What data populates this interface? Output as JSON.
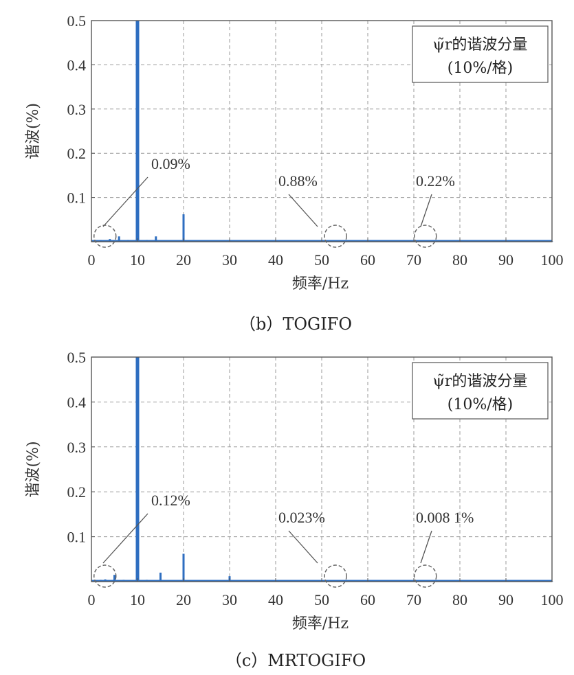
{
  "chart_data": [
    {
      "type": "bar",
      "caption": "（b）TOGIFO",
      "xlabel": "频率/Hz",
      "ylabel": "谐波(%)",
      "xlim": [
        0,
        100
      ],
      "ylim": [
        0,
        0.5
      ],
      "xticks": [
        "0",
        "10",
        "20",
        "30",
        "40",
        "50",
        "60",
        "70",
        "80",
        "90",
        "100"
      ],
      "yticks": [
        "0.1",
        "0.2",
        "0.3",
        "0.4",
        "0.5"
      ],
      "grid": true,
      "legend": {
        "line1": "ψ̃r的谐波分量",
        "line2": "(10%/格)",
        "placement": "top-right"
      },
      "color": "#2e6ec0",
      "x": [
        1,
        2,
        4,
        6,
        8,
        10,
        12,
        14,
        16,
        18,
        20,
        22,
        25,
        30,
        35,
        40,
        50,
        60,
        70,
        80,
        90,
        100
      ],
      "values": [
        0.003,
        0.004,
        0.006,
        0.012,
        0.004,
        0.5,
        0.004,
        0.012,
        0.003,
        0.003,
        0.062,
        0.003,
        0.002,
        0.003,
        0.001,
        0.001,
        0.002,
        0.001,
        0.001,
        0.001,
        0.001,
        0.001
      ],
      "annotations": [
        {
          "text": "0.09%",
          "x": 2.5,
          "y": 0.015
        },
        {
          "text": "0.88%",
          "x": 53,
          "y": 0.015
        },
        {
          "text": "0.22%",
          "x": 72.5,
          "y": 0.015
        }
      ]
    },
    {
      "type": "bar",
      "caption": "（c）MRTOGIFO",
      "xlabel": "频率/Hz",
      "ylabel": "谐波(%)",
      "xlim": [
        0,
        100
      ],
      "ylim": [
        0,
        0.5
      ],
      "xticks": [
        "0",
        "10",
        "20",
        "30",
        "40",
        "50",
        "60",
        "70",
        "80",
        "90",
        "100"
      ],
      "yticks": [
        "0.1",
        "0.2",
        "0.3",
        "0.4",
        "0.5"
      ],
      "grid": true,
      "legend": {
        "line1": "ψ̃r的谐波分量",
        "line2": "(10%/格)",
        "placement": "top-right"
      },
      "color": "#2e6ec0",
      "x": [
        1,
        2,
        3,
        5,
        7,
        10,
        12,
        15,
        18,
        20,
        22,
        25,
        30,
        35,
        40,
        50,
        60,
        70,
        80,
        90,
        100
      ],
      "values": [
        0.003,
        0.004,
        0.005,
        0.015,
        0.004,
        0.5,
        0.004,
        0.02,
        0.003,
        0.062,
        0.003,
        0.002,
        0.012,
        0.001,
        0.001,
        0.002,
        0.001,
        0.001,
        0.001,
        0.001,
        0.001
      ],
      "annotations": [
        {
          "text": "0.12%",
          "x": 2.5,
          "y": 0.015
        },
        {
          "text": "0.023%",
          "x": 53,
          "y": 0.015
        },
        {
          "text": "0.008 1%",
          "x": 72.5,
          "y": 0.015
        }
      ]
    }
  ]
}
